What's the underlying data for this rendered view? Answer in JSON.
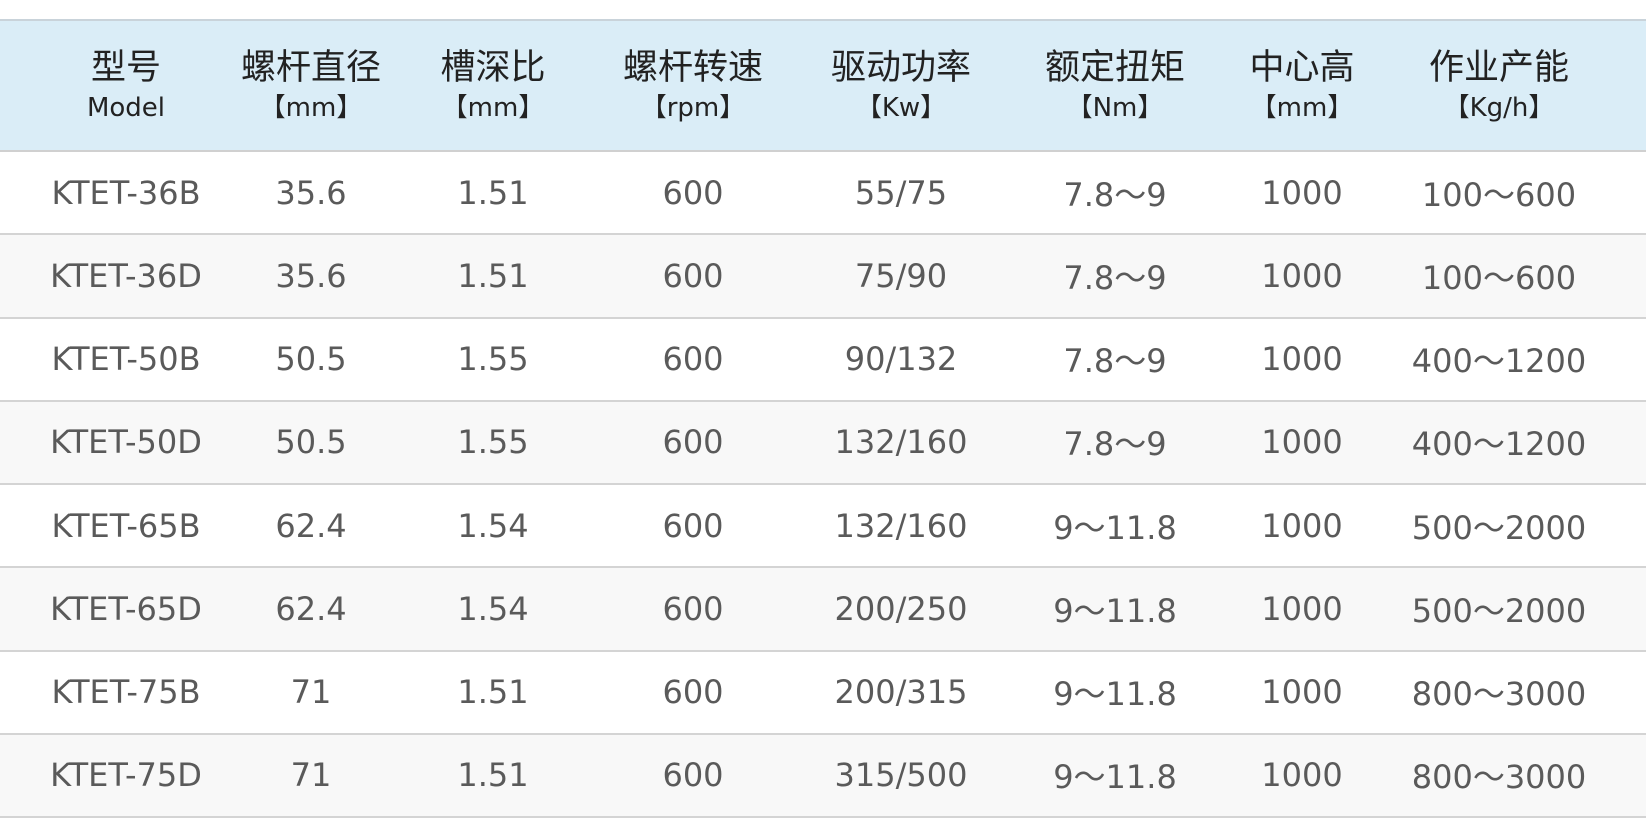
{
  "columns": [
    {
      "title": "型号",
      "unit": "Model"
    },
    {
      "title": "螺杆直径",
      "unit": "【mm】"
    },
    {
      "title": "槽深比",
      "unit": "【mm】"
    },
    {
      "title": "螺杆转速",
      "unit": "【rpm】"
    },
    {
      "title": "驱动功率",
      "unit": "【Kw】"
    },
    {
      "title": "额定扭矩",
      "unit": "【Nm】"
    },
    {
      "title": "中心高",
      "unit": "【mm】"
    },
    {
      "title": "作业产能",
      "unit": "【Kg/h】"
    }
  ],
  "rows": [
    [
      "KTET-36B",
      "35.6",
      "1.51",
      "600",
      "55/75",
      "7.8～9",
      "1000",
      "100～600"
    ],
    [
      "KTET-36D",
      "35.6",
      "1.51",
      "600",
      "75/90",
      "7.8～9",
      "1000",
      "100～600"
    ],
    [
      "KTET-50B",
      "50.5",
      "1.55",
      "600",
      "90/132",
      "7.8～9",
      "1000",
      "400～1200"
    ],
    [
      "KTET-50D",
      "50.5",
      "1.55",
      "600",
      "132/160",
      "7.8～9",
      "1000",
      "400～1200"
    ],
    [
      "KTET-65B",
      "62.4",
      "1.54",
      "600",
      "132/160",
      "9～11.8",
      "1000",
      "500～2000"
    ],
    [
      "KTET-65D",
      "62.4",
      "1.54",
      "600",
      "200/250",
      "9～11.8",
      "1000",
      "500～2000"
    ],
    [
      "KTET-75B",
      "71",
      "1.51",
      "600",
      "200/315",
      "9～11.8",
      "1000",
      "800～3000"
    ],
    [
      "KTET-75D",
      "71",
      "1.51",
      "600",
      "315/500",
      "9～11.8",
      "1000",
      "800～3000"
    ]
  ],
  "colors": {
    "header_bg": "#daedf7",
    "alt_row_bg": "#f8f8f8",
    "text": "#5a5a5a"
  }
}
